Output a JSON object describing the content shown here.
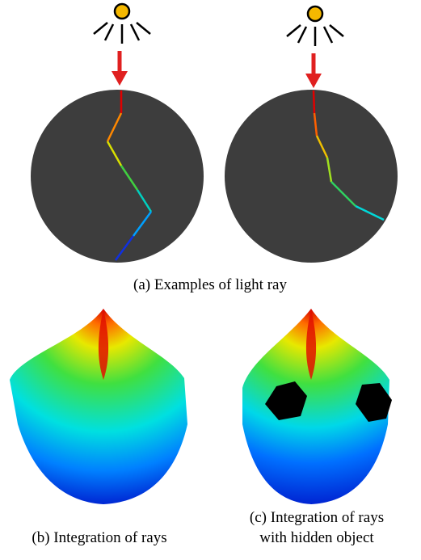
{
  "captions": {
    "a": "(a) Examples of light ray",
    "b": "(b) Integration of rays",
    "c": [
      "(c) Integration of rays",
      "with hidden object"
    ]
  }
}
